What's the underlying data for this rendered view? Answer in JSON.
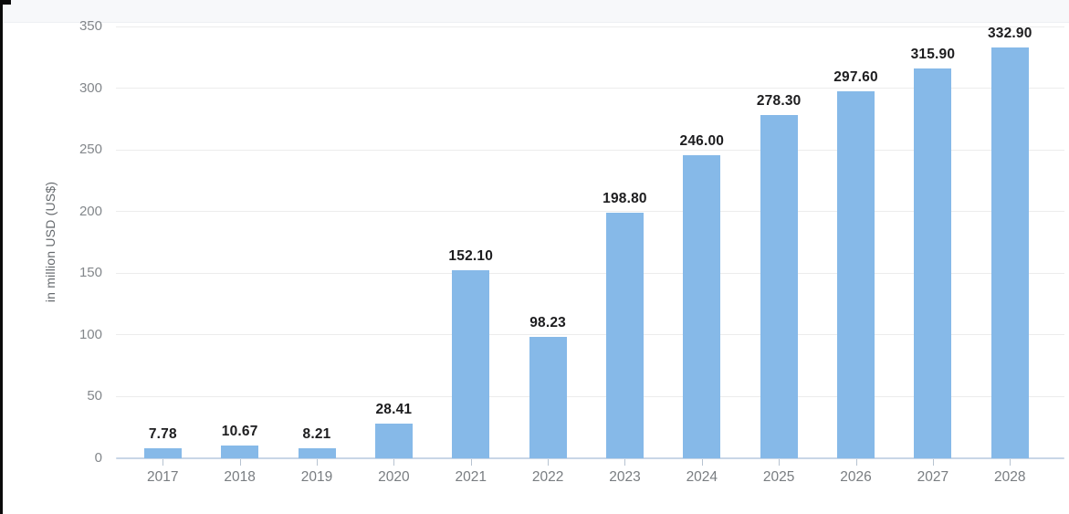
{
  "window": {
    "edge_color": "#0a0a0a"
  },
  "chart_data": {
    "type": "bar",
    "title": "",
    "categories": [
      "2017",
      "2018",
      "2019",
      "2020",
      "2021",
      "2022",
      "2023",
      "2024",
      "2025",
      "2026",
      "2027",
      "2028"
    ],
    "values": [
      7.78,
      10.67,
      8.21,
      28.41,
      152.1,
      98.23,
      198.8,
      246.0,
      278.3,
      297.6,
      315.9,
      332.9
    ],
    "value_labels": [
      "7.78",
      "10.67",
      "8.21",
      "28.41",
      "152.10",
      "98.23",
      "198.80",
      "246.00",
      "278.30",
      "297.60",
      "315.90",
      "332.90"
    ],
    "xlabel": "",
    "ylabel": "in million USD (US$)",
    "ylim": [
      0,
      350
    ],
    "yticks": [
      0,
      50,
      100,
      150,
      200,
      250,
      300,
      350
    ],
    "grid": true,
    "legend_position": "none"
  },
  "colors": {
    "bar": "#86b9e8",
    "gridline": "#ececec",
    "baseline": "#c9d6e7",
    "axis_tick_mark": "#b7c3d1",
    "axis_text": "#797d81",
    "y_tick_text": "#83878b",
    "value_text": "#1d1d1f",
    "top_band": "#f7f8fa",
    "background": "#ffffff"
  }
}
